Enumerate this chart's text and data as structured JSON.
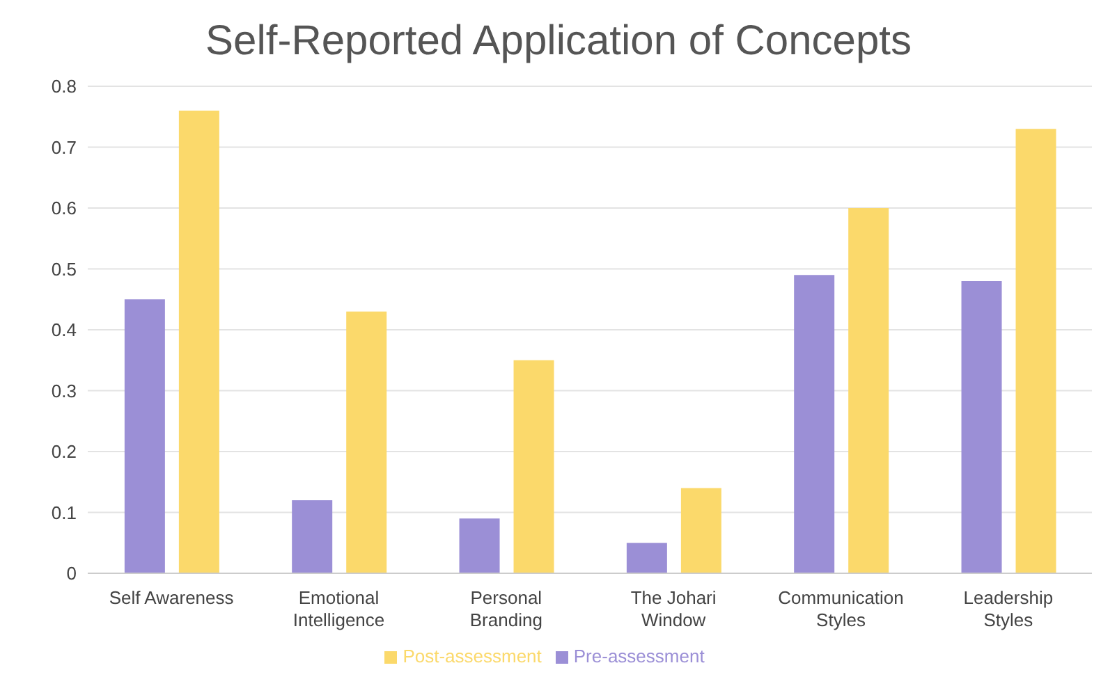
{
  "chart_data": {
    "type": "bar",
    "title": "Self-Reported Application of Concepts",
    "categories": [
      "Self Awareness",
      "Emotional Intelligence",
      "Personal Branding",
      "The Johari Window",
      "Communication Styles",
      "Leadership Styles"
    ],
    "series": [
      {
        "name": "Pre-assessment",
        "color": "#9b8fd6",
        "values": [
          0.45,
          0.12,
          0.09,
          0.05,
          0.49,
          0.48
        ]
      },
      {
        "name": "Post-assessment",
        "color": "#fbd96b",
        "values": [
          0.76,
          0.43,
          0.35,
          0.14,
          0.6,
          0.73
        ]
      }
    ],
    "ylim": [
      0,
      0.8
    ],
    "yticks": [
      0,
      0.1,
      0.2,
      0.3,
      0.4,
      0.5,
      0.6,
      0.7,
      0.8
    ],
    "grid": "y",
    "legend": "bottom"
  }
}
